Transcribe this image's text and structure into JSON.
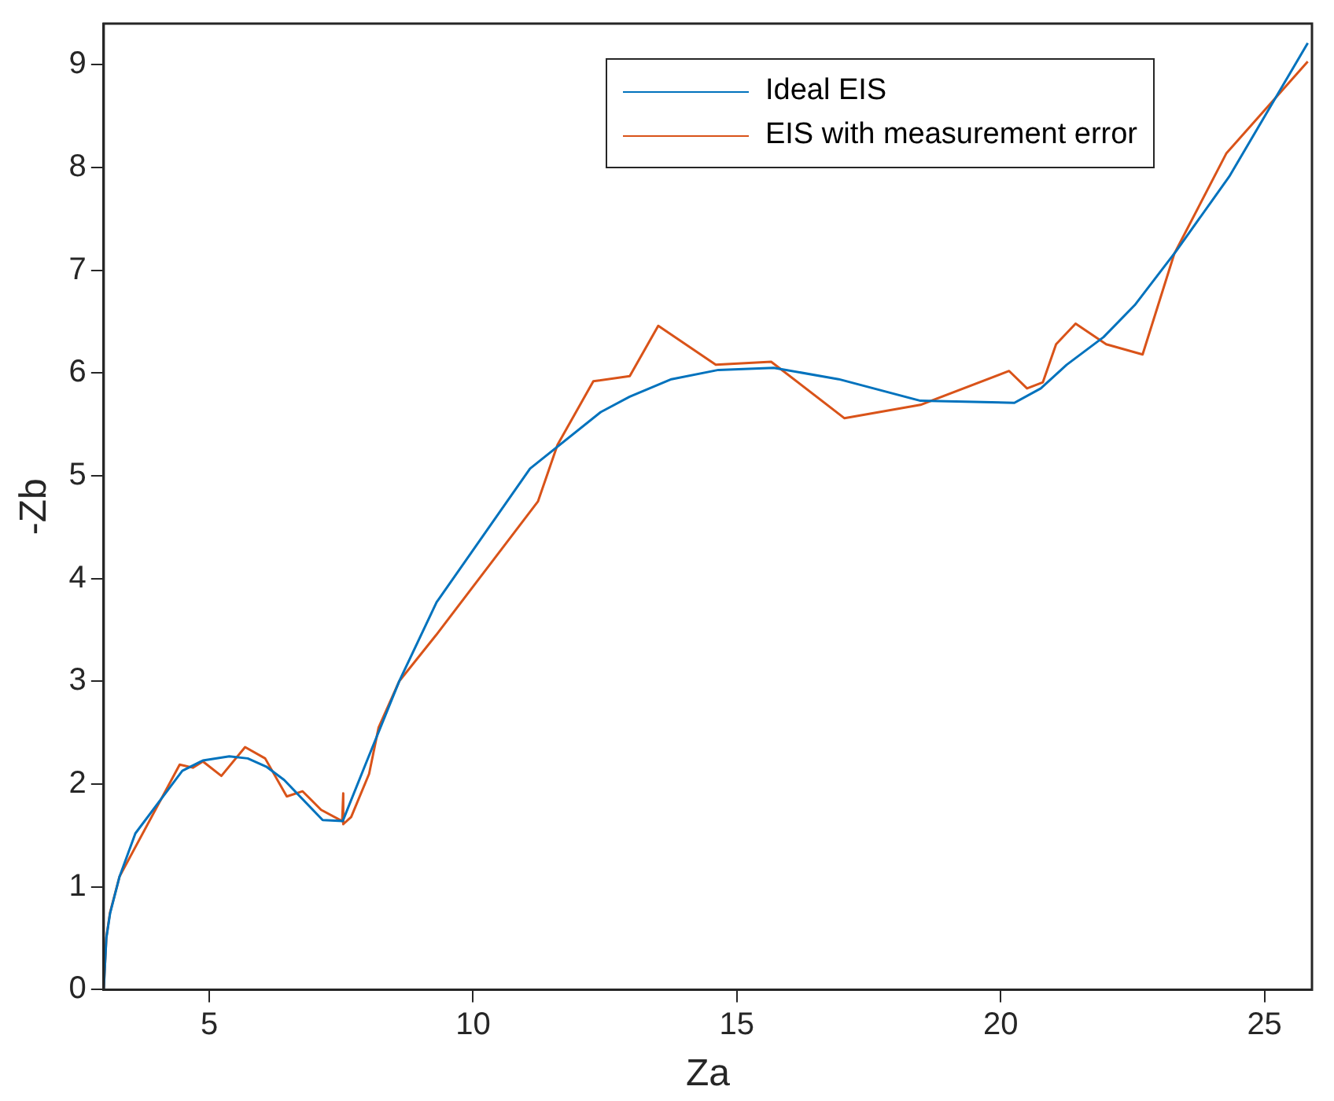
{
  "chart_data": {
    "type": "line",
    "xlabel": "Za",
    "ylabel": "-Zb",
    "xlim": [
      3,
      25.9
    ],
    "ylim": [
      0,
      9.4
    ],
    "xticks": [
      5,
      10,
      15,
      20,
      25
    ],
    "yticks": [
      0,
      1,
      2,
      3,
      4,
      5,
      6,
      7,
      8,
      9
    ],
    "grid": false,
    "legend": "top right",
    "marker": "none",
    "line_style": "solid",
    "series": [
      {
        "name": "Ideal EIS",
        "color": "#0072bd",
        "x": [
          3.0,
          3.05,
          3.12,
          3.3,
          3.6,
          4.49,
          4.88,
          5.38,
          5.73,
          6.08,
          6.42,
          7.15,
          7.53,
          7.96,
          8.6,
          9.31,
          11.08,
          12.42,
          12.97,
          13.76,
          14.65,
          15.7,
          16.93,
          18.48,
          20.26,
          20.76,
          21.25,
          21.95,
          22.54,
          23.33,
          24.33,
          25.82
        ],
        "values": [
          0,
          0.5,
          0.74,
          1.1,
          1.52,
          2.13,
          2.23,
          2.27,
          2.25,
          2.17,
          2.04,
          1.65,
          1.64,
          2.19,
          3.0,
          3.77,
          5.07,
          5.62,
          5.77,
          5.94,
          6.03,
          6.05,
          5.94,
          5.73,
          5.71,
          5.85,
          6.08,
          6.35,
          6.66,
          7.19,
          7.91,
          9.21
        ]
      },
      {
        "name": "EIS with measurement error",
        "color": "#d95319",
        "x": [
          3.0,
          3.05,
          3.12,
          3.3,
          4.44,
          4.69,
          4.88,
          5.23,
          5.68,
          6.06,
          6.47,
          6.77,
          7.12,
          7.52,
          7.54,
          7.54,
          7.69,
          8.03,
          8.21,
          8.6,
          9.3,
          11.23,
          11.6,
          12.28,
          12.97,
          13.51,
          14.6,
          15.65,
          17.04,
          18.48,
          20.16,
          20.5,
          20.8,
          21.05,
          21.42,
          22.0,
          22.69,
          23.29,
          24.28,
          25.82
        ],
        "values": [
          0,
          0.51,
          0.75,
          1.1,
          2.19,
          2.16,
          2.22,
          2.08,
          2.36,
          2.25,
          1.88,
          1.93,
          1.75,
          1.64,
          1.91,
          1.61,
          1.68,
          2.1,
          2.55,
          3.0,
          3.45,
          4.75,
          5.3,
          5.92,
          5.97,
          6.46,
          6.08,
          6.11,
          5.56,
          5.69,
          6.02,
          5.85,
          5.91,
          6.28,
          6.48,
          6.28,
          6.18,
          7.16,
          8.14,
          9.03
        ]
      }
    ]
  }
}
